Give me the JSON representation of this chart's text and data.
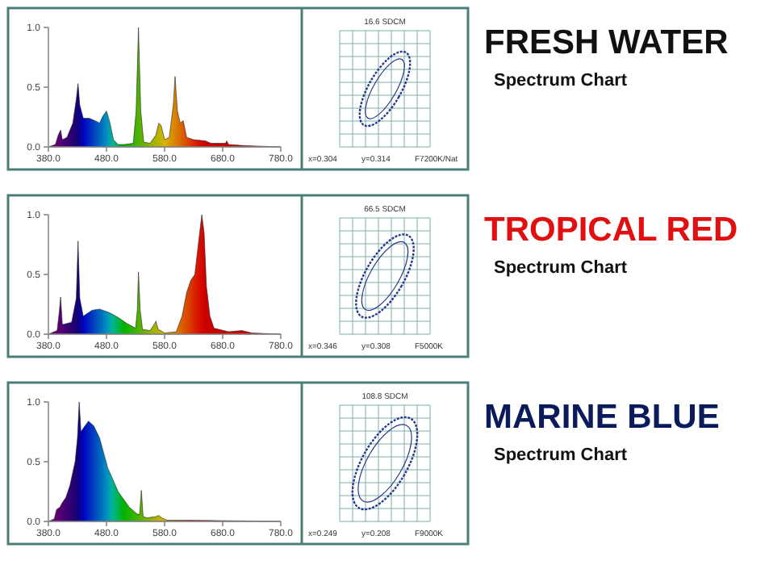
{
  "chart_data": [
    {
      "type": "area",
      "xlim": [
        380,
        780
      ],
      "xticks": [
        {
          "value": 380,
          "label": "380.0"
        },
        {
          "value": 480,
          "label": "480.0"
        },
        {
          "value": 580,
          "label": "580.0"
        },
        {
          "value": 680,
          "label": "680.0"
        },
        {
          "value": 780,
          "label": "780.0"
        }
      ],
      "ylim": [
        0,
        1
      ],
      "yticks": [
        {
          "value": 0,
          "label": "0.0"
        },
        {
          "value": 0.5,
          "label": "0.5"
        },
        {
          "value": 1,
          "label": "1.0"
        }
      ],
      "x": [
        380,
        392,
        397,
        401,
        404,
        412,
        422,
        428,
        431,
        434,
        440,
        450,
        460,
        468,
        474,
        480,
        486,
        492,
        500,
        510,
        526,
        531,
        535,
        539,
        544,
        555,
        565,
        570,
        574,
        580,
        588,
        595,
        598,
        602,
        607,
        612,
        618,
        630,
        650,
        660,
        685,
        687,
        690,
        720,
        780
      ],
      "values": [
        0,
        0.02,
        0.1,
        0.14,
        0.06,
        0.08,
        0.2,
        0.4,
        0.53,
        0.35,
        0.24,
        0.24,
        0.22,
        0.2,
        0.26,
        0.3,
        0.2,
        0.06,
        0.02,
        0.02,
        0.03,
        0.3,
        1.0,
        0.3,
        0.04,
        0.03,
        0.1,
        0.2,
        0.18,
        0.06,
        0.08,
        0.35,
        0.59,
        0.3,
        0.2,
        0.22,
        0.08,
        0.06,
        0.05,
        0.03,
        0.03,
        0.05,
        0.02,
        0.01,
        0
      ],
      "annotations": [
        "FRESH WATER",
        "Spectrum Chart",
        "16.6 SDCM",
        "x=0.304",
        "y=0.314",
        "F7200K/Nat"
      ]
    },
    {
      "type": "area",
      "xlim": [
        380,
        780
      ],
      "xticks": [
        {
          "value": 380,
          "label": "380.0"
        },
        {
          "value": 480,
          "label": "480.0"
        },
        {
          "value": 580,
          "label": "580.0"
        },
        {
          "value": 680,
          "label": "680.0"
        },
        {
          "value": 780,
          "label": "780.0"
        }
      ],
      "ylim": [
        0,
        1
      ],
      "yticks": [
        {
          "value": 0,
          "label": "0.0"
        },
        {
          "value": 0.5,
          "label": "0.5"
        },
        {
          "value": 1,
          "label": "1.0"
        }
      ],
      "x": [
        380,
        395,
        399,
        401,
        404,
        420,
        428,
        431,
        434,
        440,
        455,
        468,
        485,
        500,
        515,
        530,
        533,
        535,
        538,
        542,
        555,
        562,
        565,
        569,
        580,
        600,
        610,
        618,
        625,
        632,
        638,
        644,
        648,
        652,
        658,
        665,
        690,
        713,
        730,
        780
      ],
      "values": [
        0,
        0.03,
        0.2,
        0.31,
        0.08,
        0.1,
        0.3,
        0.78,
        0.3,
        0.15,
        0.2,
        0.21,
        0.18,
        0.14,
        0.09,
        0.05,
        0.2,
        0.52,
        0.2,
        0.04,
        0.03,
        0.08,
        0.11,
        0.04,
        0.01,
        0.02,
        0.15,
        0.35,
        0.45,
        0.5,
        0.75,
        1.0,
        0.85,
        0.4,
        0.15,
        0.05,
        0.02,
        0.03,
        0.01,
        0
      ],
      "annotations": [
        "TROPICAL RED",
        "Spectrum Chart",
        "66.5 SDCM",
        "x=0.346",
        "y=0.308",
        "F5000K"
      ]
    },
    {
      "type": "area",
      "xlim": [
        380,
        780
      ],
      "xticks": [
        {
          "value": 380,
          "label": "380.0"
        },
        {
          "value": 480,
          "label": "480.0"
        },
        {
          "value": 580,
          "label": "580.0"
        },
        {
          "value": 680,
          "label": "680.0"
        },
        {
          "value": 780,
          "label": "780.0"
        }
      ],
      "ylim": [
        0,
        1
      ],
      "yticks": [
        {
          "value": 0,
          "label": "0.0"
        },
        {
          "value": 0.5,
          "label": "0.5"
        },
        {
          "value": 1,
          "label": "1.0"
        }
      ],
      "x": [
        380,
        390,
        394,
        400,
        403,
        410,
        417,
        426,
        430,
        433,
        436,
        440,
        449,
        458,
        468,
        482,
        500,
        519,
        533,
        537,
        540,
        543,
        550,
        565,
        570,
        575,
        584,
        620,
        780
      ],
      "values": [
        0,
        0.02,
        0.1,
        0.12,
        0.15,
        0.2,
        0.3,
        0.5,
        0.7,
        1.0,
        0.75,
        0.78,
        0.84,
        0.8,
        0.7,
        0.45,
        0.25,
        0.12,
        0.06,
        0.06,
        0.26,
        0.04,
        0.03,
        0.04,
        0.05,
        0.03,
        0.01,
        0.01,
        0
      ],
      "annotations": [
        "MARINE BLUE",
        "Spectrum Chart",
        "108.8 SDCM",
        "x=0.249",
        "y=0.208",
        "F9000K"
      ]
    }
  ]
}
